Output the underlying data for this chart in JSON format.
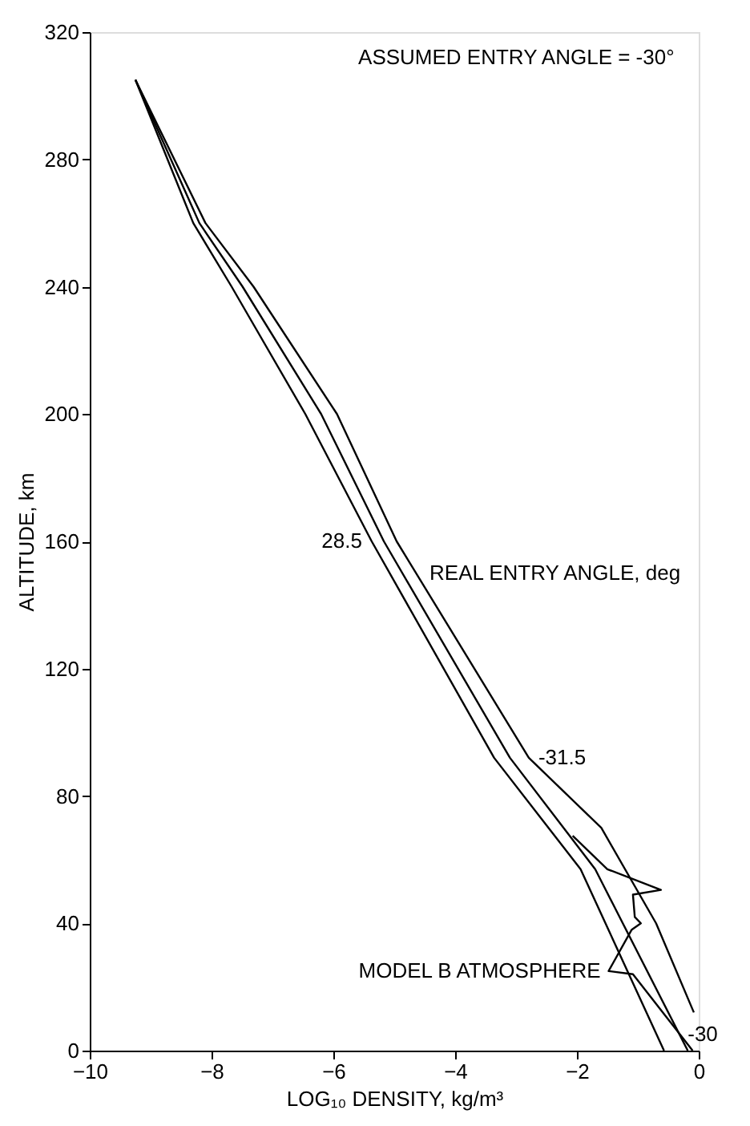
{
  "chart_data": {
    "type": "line",
    "xlabel": "LOG₁₀ DENSITY, kg/m³",
    "ylabel": "ALTITUDE, km",
    "annotations": [
      "ASSUMED ENTRY ANGLE = -30°",
      "REAL ENTRY ANGLE, deg"
    ],
    "xlim": [
      -10,
      0
    ],
    "xticks": [
      -10,
      -8,
      -6,
      -4,
      -2,
      0
    ],
    "ylim": [
      0,
      320
    ],
    "yticks": [
      0,
      40,
      80,
      120,
      160,
      200,
      240,
      280,
      320
    ],
    "grid": false,
    "legend": false,
    "marker": "none",
    "line_style": "solid",
    "series": [
      {
        "name": "-31.5",
        "color": "#000000",
        "x": [
          -9.25,
          -8.1,
          -7.31,
          -5.94,
          -4.96,
          -2.79,
          -1.6,
          -0.7,
          -0.08
        ],
        "values": [
          305,
          260,
          240,
          200,
          160,
          92,
          70,
          40,
          12
        ]
      },
      {
        "name": "-30",
        "color": "#000000",
        "x": [
          -9.25,
          -8.2,
          -7.49,
          -6.2,
          -5.17,
          -3.1,
          -1.7,
          -0.18
        ],
        "values": [
          305,
          260,
          240,
          200,
          160,
          92,
          57,
          0
        ]
      },
      {
        "name": "28.5",
        "color": "#000000",
        "x": [
          -9.25,
          -8.3,
          -7.67,
          -6.46,
          -5.37,
          -3.36,
          -1.94,
          -0.57
        ],
        "values": [
          305,
          260,
          240,
          200,
          160,
          92,
          57,
          0
        ]
      },
      {
        "name": "MODEL B ATMOSPHERE",
        "color": "#000000",
        "x": [
          -2.07,
          -1.5,
          -0.62,
          -1.08,
          -1.05,
          -0.95,
          -1.1,
          -1.48,
          -1.08,
          -0.1
        ],
        "values": [
          67.5,
          57,
          50.5,
          49,
          42,
          40,
          38,
          25,
          24,
          0
        ]
      }
    ]
  }
}
